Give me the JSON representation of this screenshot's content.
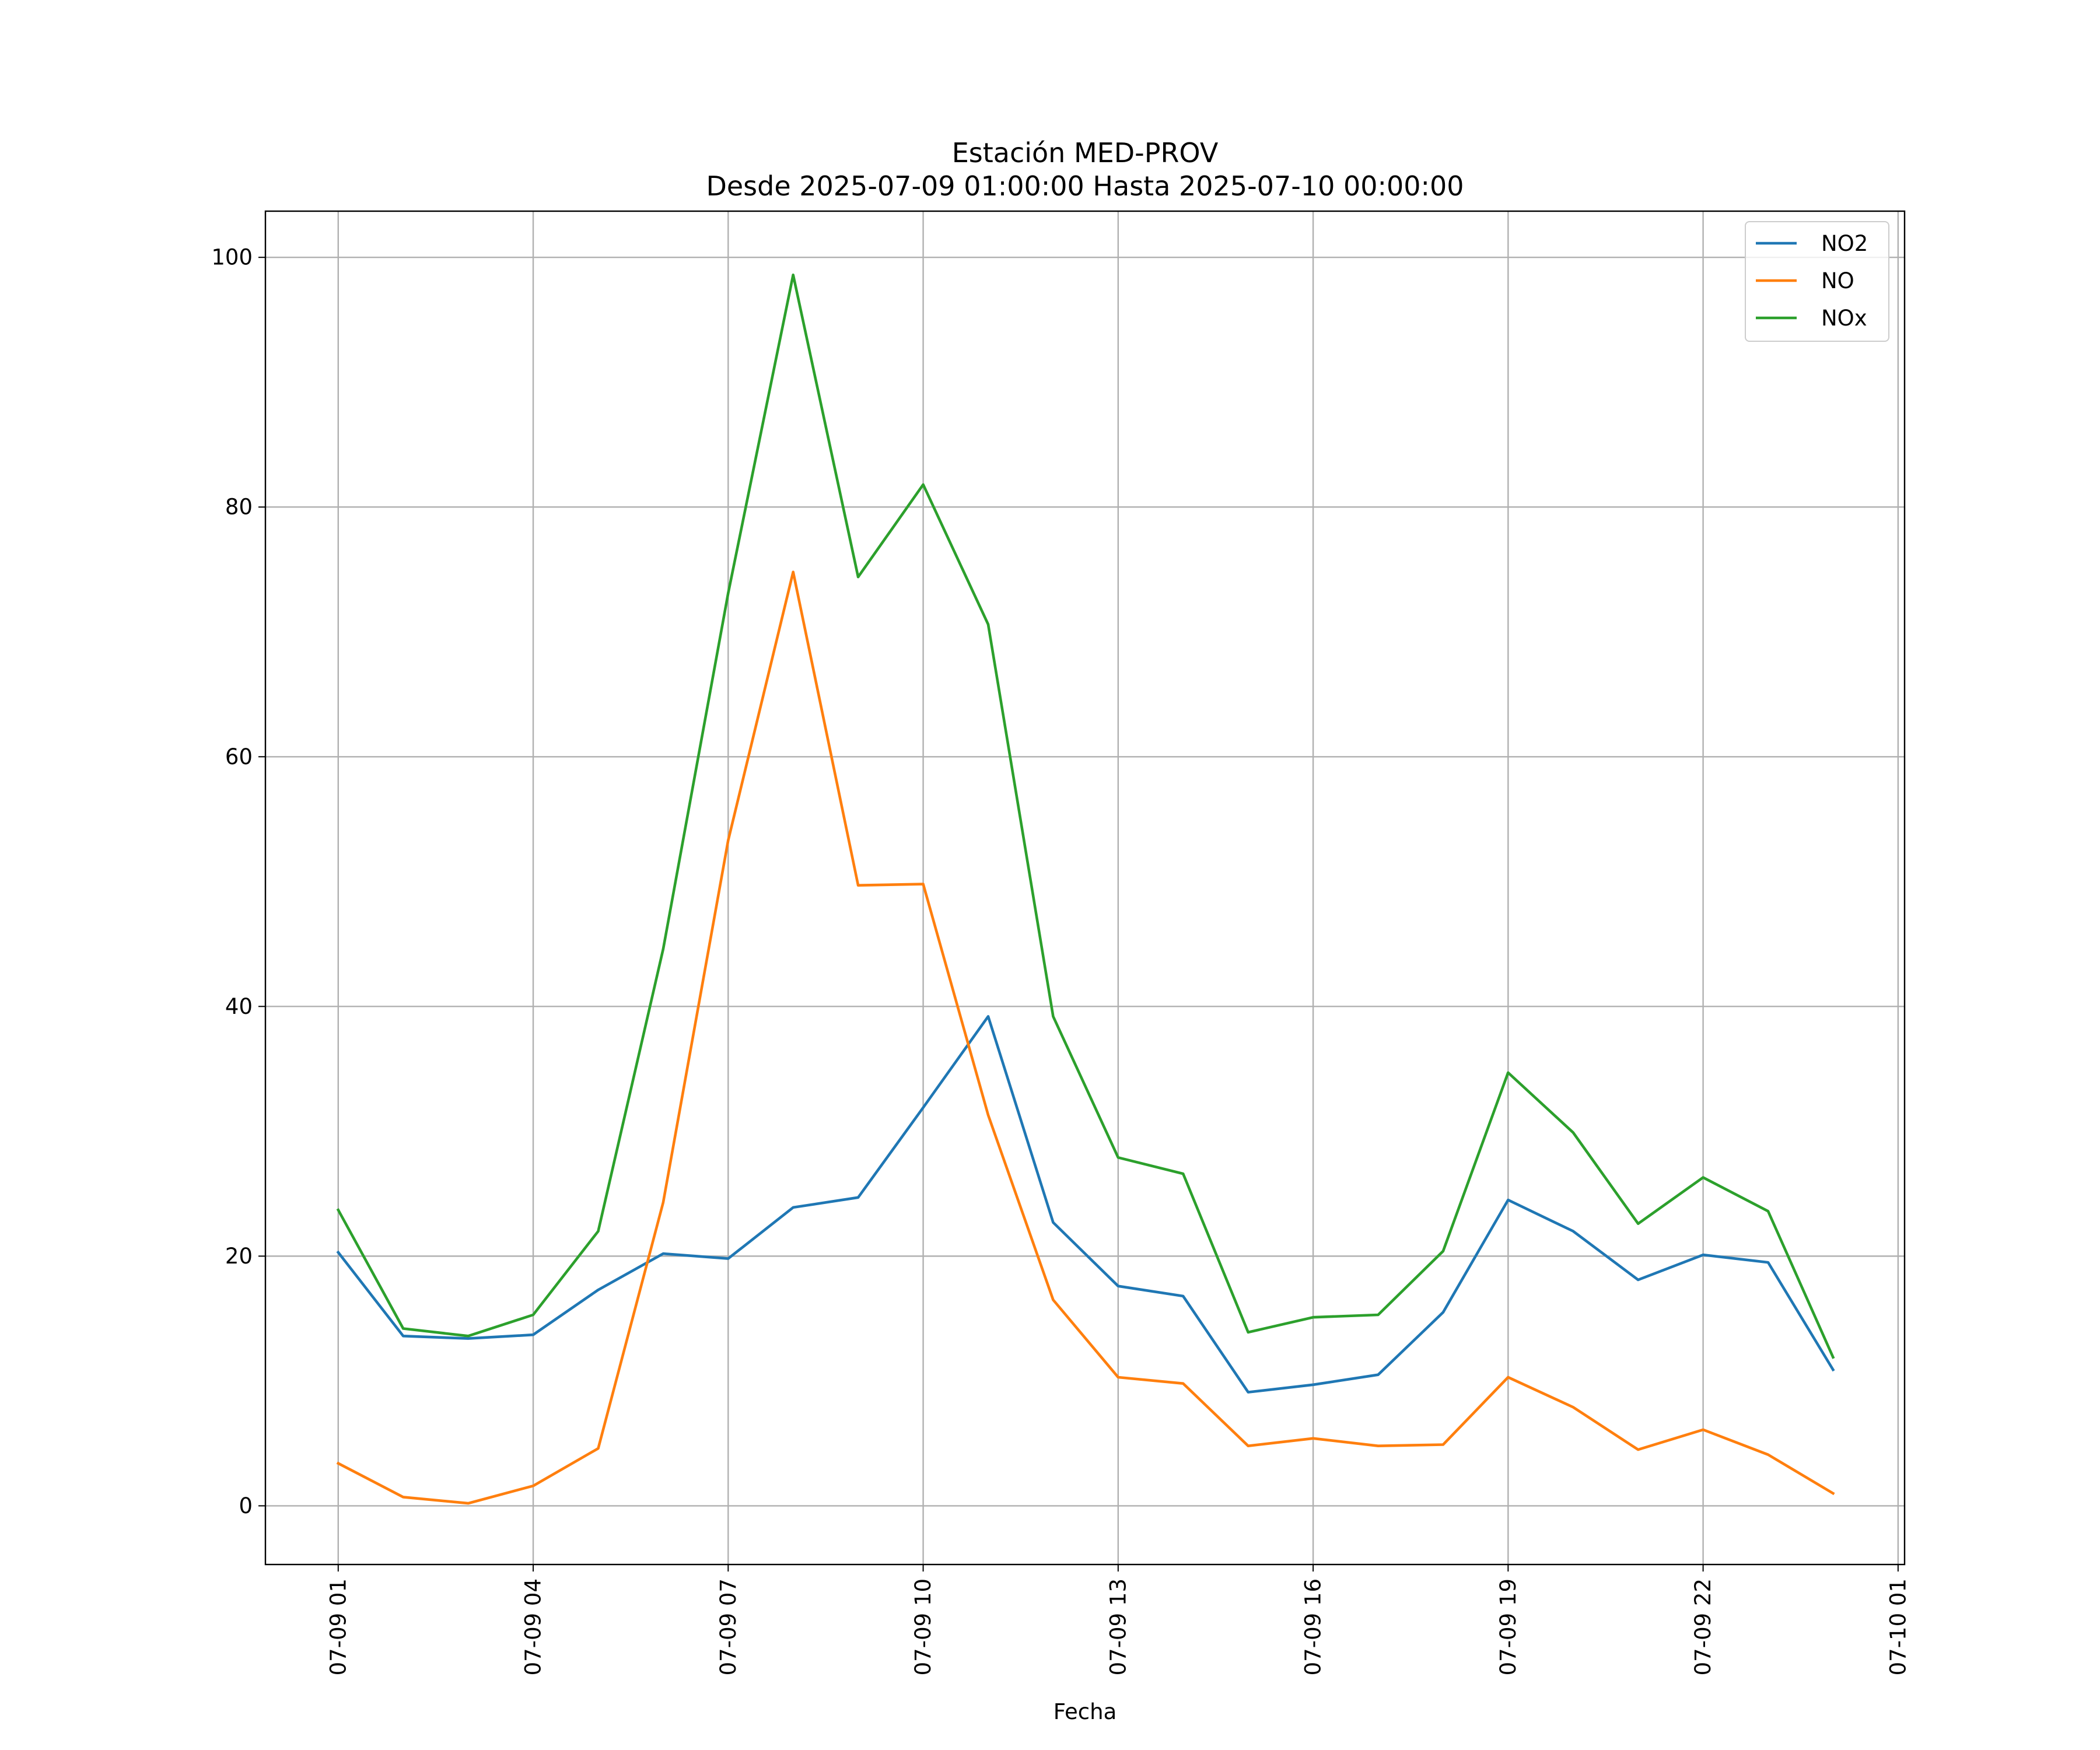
{
  "chart_data": {
    "type": "line",
    "title": "Estación MED-PROV",
    "subtitle": "Desde 2025-07-09 01:00:00 Hasta 2025-07-10 00:00:00",
    "xlabel": "Fecha",
    "ylabel": "",
    "x": [
      "07-09 01",
      "07-09 02",
      "07-09 03",
      "07-09 04",
      "07-09 05",
      "07-09 06",
      "07-09 07",
      "07-09 08",
      "07-09 09",
      "07-09 10",
      "07-09 11",
      "07-09 12",
      "07-09 13",
      "07-09 14",
      "07-09 15",
      "07-09 16",
      "07-09 17",
      "07-09 18",
      "07-09 19",
      "07-09 20",
      "07-09 21",
      "07-09 22",
      "07-09 23",
      "07-10 00"
    ],
    "x_hours": [
      0,
      1,
      2,
      3,
      4,
      5,
      6,
      7,
      8,
      9,
      10,
      11,
      12,
      13,
      14,
      15,
      16,
      17,
      18,
      19,
      20,
      21,
      22,
      23
    ],
    "xlim": [
      -1.12,
      24.1
    ],
    "ylim": [
      -4.7,
      103.7
    ],
    "x_ticks": [
      {
        "hour": 0,
        "label": "07-09 01"
      },
      {
        "hour": 3,
        "label": "07-09 04"
      },
      {
        "hour": 6,
        "label": "07-09 07"
      },
      {
        "hour": 9,
        "label": "07-09 10"
      },
      {
        "hour": 12,
        "label": "07-09 13"
      },
      {
        "hour": 15,
        "label": "07-09 16"
      },
      {
        "hour": 18,
        "label": "07-09 19"
      },
      {
        "hour": 21,
        "label": "07-09 22"
      },
      {
        "hour": 24,
        "label": "07-10 01"
      }
    ],
    "y_ticks": [
      0,
      20,
      40,
      60,
      80,
      100
    ],
    "grid": true,
    "legend_position": "top-right",
    "series": [
      {
        "name": "NO2",
        "color": "#1f77b4",
        "values": [
          20.3,
          13.6,
          13.4,
          13.7,
          17.3,
          20.2,
          19.8,
          23.9,
          24.7,
          31.9,
          39.2,
          22.7,
          17.6,
          16.8,
          9.1,
          9.7,
          10.5,
          15.5,
          24.5,
          22.0,
          18.1,
          20.1,
          19.5,
          10.9
        ]
      },
      {
        "name": "NO",
        "color": "#ff7f0e",
        "values": [
          3.4,
          0.7,
          0.2,
          1.6,
          4.6,
          24.3,
          53.3,
          74.8,
          49.7,
          49.8,
          31.3,
          16.5,
          10.3,
          9.8,
          4.8,
          5.4,
          4.8,
          4.9,
          10.3,
          7.9,
          4.5,
          6.1,
          4.1,
          1.0
        ]
      },
      {
        "name": "NOx",
        "color": "#2ca02c",
        "values": [
          23.7,
          14.2,
          13.6,
          15.3,
          22.0,
          44.6,
          73.1,
          98.6,
          74.4,
          81.8,
          70.6,
          39.2,
          27.9,
          26.6,
          13.9,
          15.1,
          15.3,
          20.4,
          34.7,
          29.9,
          22.6,
          26.3,
          23.6,
          11.9
        ]
      }
    ]
  }
}
